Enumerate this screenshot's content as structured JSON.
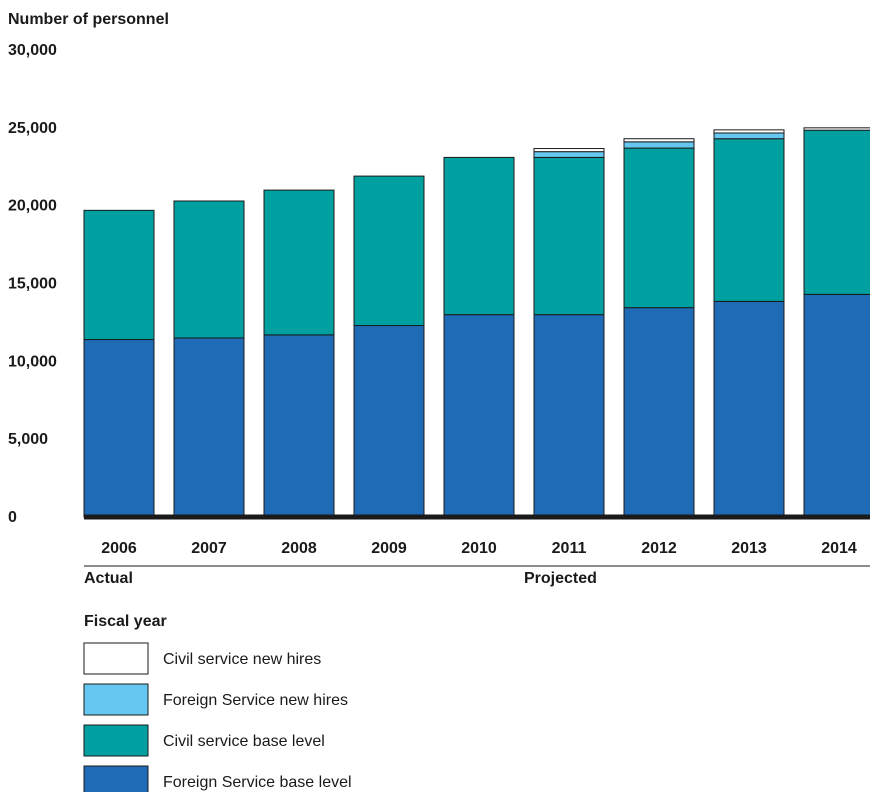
{
  "chart_data": {
    "type": "bar",
    "stacked": true,
    "ylabel": "Number of personnel",
    "xlabel": "Fiscal year",
    "ylim": [
      0,
      30000
    ],
    "yticks": [
      0,
      5000,
      10000,
      15000,
      20000,
      25000,
      30000
    ],
    "ytick_labels": [
      "0",
      "5,000",
      "10,000",
      "15,000",
      "20,000",
      "25,000",
      "30,000"
    ],
    "categories": [
      "2006",
      "2007",
      "2008",
      "2009",
      "2010",
      "2011",
      "2012",
      "2013",
      "2014"
    ],
    "groups": [
      {
        "label": "Actual",
        "categories": [
          "2006",
          "2007",
          "2008",
          "2009",
          "2010"
        ]
      },
      {
        "label": "Projected",
        "categories": [
          "2011",
          "2012",
          "2013",
          "2014"
        ]
      }
    ],
    "series": [
      {
        "name": "Foreign Service base level",
        "color": "#1f6bb5",
        "values": [
          11400,
          11500,
          11700,
          12300,
          13000,
          13000,
          13450,
          13850,
          14300
        ]
      },
      {
        "name": "Civil service base level",
        "color": "#00a0a0",
        "values": [
          8300,
          8800,
          9300,
          9600,
          10100,
          10100,
          10250,
          10450,
          10550
        ]
      },
      {
        "name": "Foreign Service new hires",
        "color": "#66c8f0",
        "values": [
          0,
          0,
          0,
          0,
          0,
          370,
          400,
          370,
          0
        ]
      },
      {
        "name": "Civil service new hires",
        "color": "#ffffff",
        "values": [
          0,
          0,
          0,
          0,
          0,
          200,
          200,
          200,
          150
        ]
      }
    ],
    "legend": {
      "placement": "bottom",
      "order": [
        "Civil service new hires",
        "Foreign Service new hires",
        "Civil service base level",
        "Foreign Service base level"
      ]
    },
    "grid": false
  }
}
